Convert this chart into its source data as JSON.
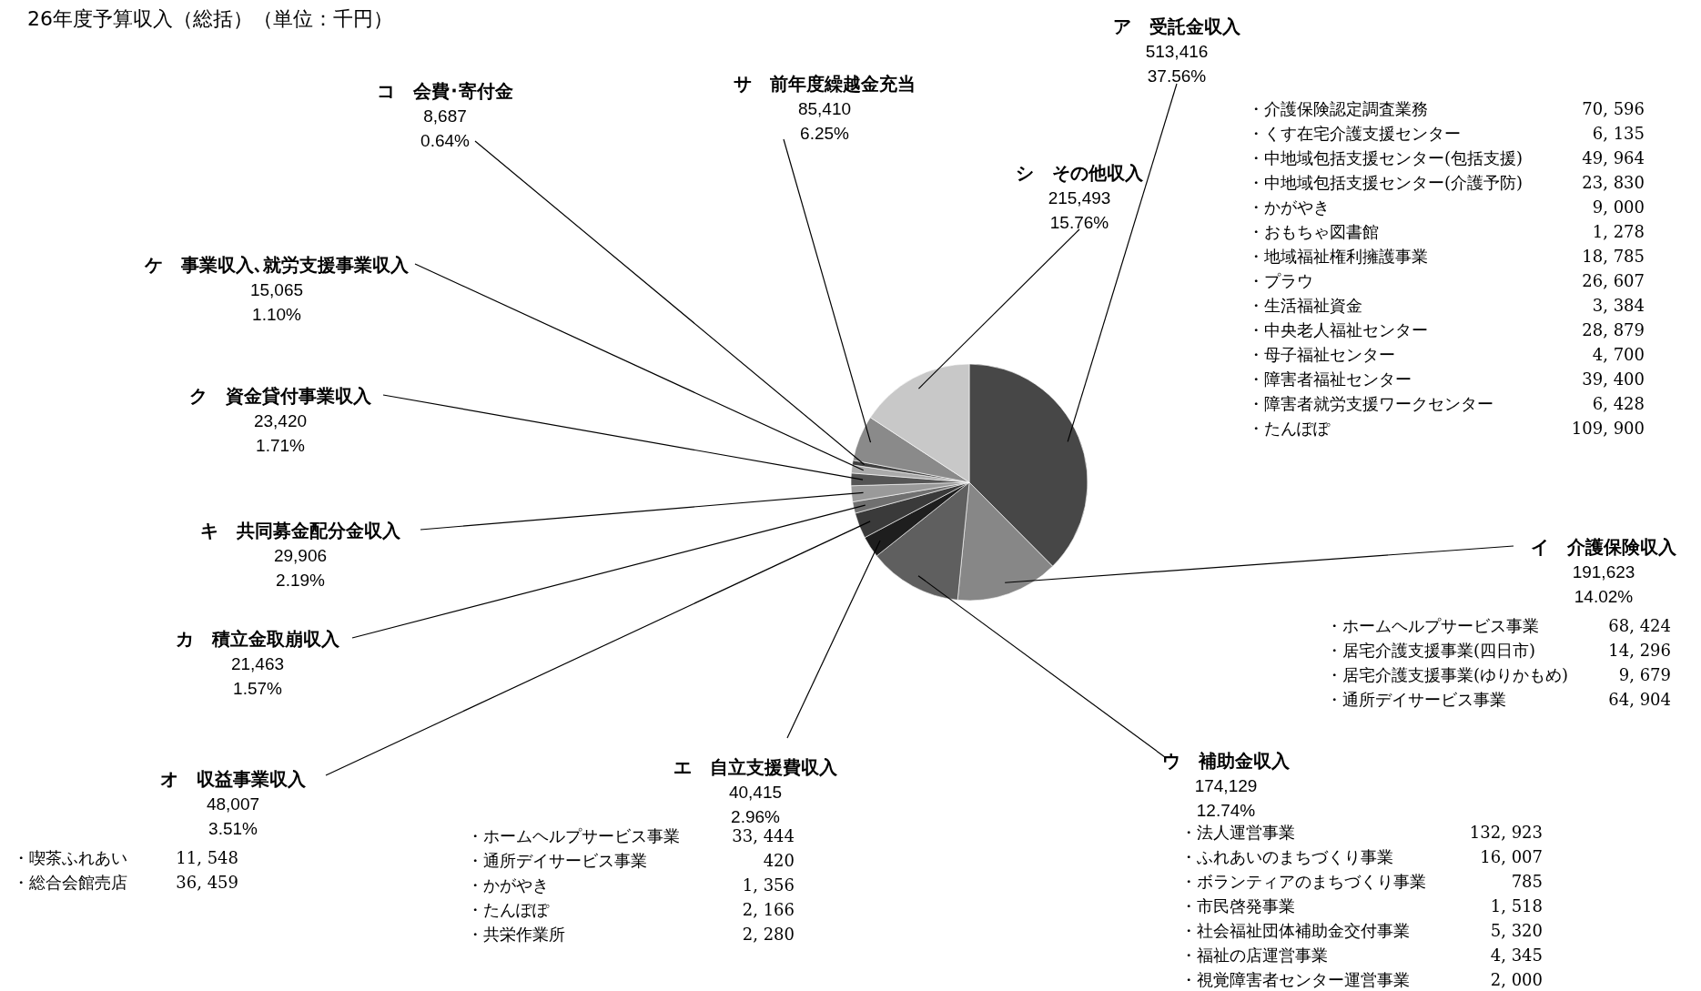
{
  "chart_data": {
    "type": "pie",
    "title": "26年度予算収入（総括）（単位：千円）",
    "categories": [
      "ア　受託金収入",
      "イ　介護保険収入",
      "ウ　補助金収入",
      "エ　自立支援費収入",
      "オ　収益事業収入",
      "カ　積立金取崩収入",
      "キ　共同募金配分金収入",
      "ク　資金貸付事業収入",
      "ケ　事業収入､就労支援事業収入",
      "コ　会費･寄付金",
      "サ　前年度繰越金充当",
      "シ　その他収入"
    ],
    "values": [
      513416,
      191623,
      174129,
      40415,
      48007,
      21463,
      29906,
      23420,
      15065,
      8687,
      85410,
      215493
    ],
    "colors": [
      "#474747",
      "#878787",
      "#5f5f5f",
      "#1e1e1e",
      "#3a3a3a",
      "#707070",
      "#9a9a9a",
      "#555555",
      "#aaaaaa",
      "#3f3f3f",
      "#8a8a8a",
      "#c8c8c8"
    ],
    "value_labels": [
      "513,416\n37.56%",
      "191,623\n14.02%",
      "174,129\n12.74%",
      "40,415\n2.96%",
      "48,007\n3.51%",
      "21,463\n1.57%",
      "29,906\n2.19%",
      "23,420\n1.71%",
      "15,065\n1.10%",
      "8,687\n0.64%",
      "85,410\n6.25%",
      "215,493\n15.76%"
    ],
    "annotations": [
      "・介護保険認定調査業務\t70, 596",
      "・くす在宅介護支援センター\t6, 135",
      "・中地域包括支援センター(包括支援)\t49, 964",
      "・中地域包括支援センター(介護予防)\t23, 830",
      "・かがやき\t9, 000",
      "・おもちゃ図書館\t1, 278",
      "・地域福祉権利擁護事業\t18, 785",
      "・プラウ\t26, 607",
      "・生活福祉資金\t3, 384",
      "・中央老人福祉センター\t28, 879",
      "・母子福祉センター\t4, 700",
      "・障害者福祉センター\t39, 400",
      "・障害者就労支援ワークセンター\t6, 428",
      "・たんぽぽ\t109, 900",
      "・ホームヘルプサービス事業\t68, 424",
      "・居宅介護支援事業(四日市)\t14, 296",
      "・居宅介護支援事業(ゆりかもめ)\t9, 679",
      "・通所デイサービス事業\t64, 904",
      "・法人運営事業\t132, 923",
      "・ふれあいのまちづくり事業\t16, 007",
      "・ボランティアのまちづくり事業\t785",
      "・市民啓発事業\t1, 518",
      "・社会福祉団体補助金交付事業\t5, 320",
      "・福祉の店運営事業\t4, 345",
      "・視覚障害者センター運営事業\t2, 000",
      "・ホームヘルプサービス事業\t33, 444",
      "・通所デイサービス事業\t420",
      "・かがやき\t1, 356",
      "・たんぽぽ\t2, 166",
      "・共栄作業所\t2, 280",
      "・喫茶ふれあい\t11, 548",
      "・総合会館売店\t36, 459"
    ]
  }
}
